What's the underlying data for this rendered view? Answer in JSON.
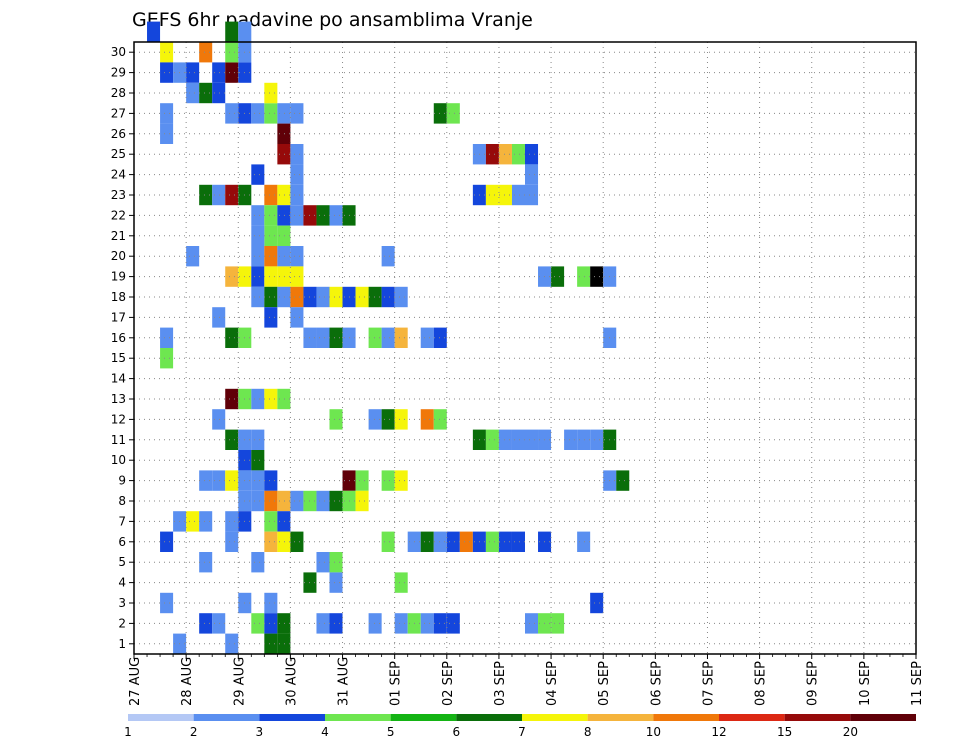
{
  "chart_data": {
    "type": "heatmap",
    "title": "GEFS 6hr padavine po ansamblima Vranje",
    "x_tick_labels": [
      "27 AUG",
      "28 AUG",
      "29 AUG",
      "30 AUG",
      "31 AUG",
      "01 SEP",
      "02 SEP",
      "03 SEP",
      "04 SEP",
      "05 SEP",
      "06 SEP",
      "07 SEP",
      "08 SEP",
      "09 SEP",
      "10 SEP",
      "11 SEP"
    ],
    "y_tick_labels": [
      "1",
      "2",
      "3",
      "4",
      "5",
      "6",
      "7",
      "8",
      "9",
      "10",
      "11",
      "12",
      "13",
      "14",
      "15",
      "16",
      "17",
      "18",
      "19",
      "20",
      "21",
      "22",
      "23",
      "24",
      "25",
      "26",
      "27",
      "28",
      "29",
      "30"
    ],
    "ylim": [
      0,
      30
    ],
    "steps_per_day": 4,
    "grid": true,
    "legend": {
      "placement": "bottom",
      "labels": [
        "1",
        "2",
        "3",
        "4",
        "5",
        "6",
        "7",
        "8",
        "10",
        "12",
        "15",
        "20"
      ],
      "colors": [
        "#b4c8f5",
        "#5a8ff0",
        "#1446dc",
        "#6ee650",
        "#14b414",
        "#0a6e0a",
        "#f5f50a",
        "#f5b43c",
        "#f0780a",
        "#dc2814",
        "#960a0a",
        "#600008"
      ]
    },
    "cells": [
      [
        1,
        30,
        2
      ],
      [
        2,
        29,
        6
      ],
      [
        2,
        28,
        2
      ],
      [
        3,
        28,
        1
      ],
      [
        4,
        28,
        2
      ],
      [
        4,
        27,
        1
      ],
      [
        2,
        26,
        1
      ],
      [
        2,
        25,
        1
      ],
      [
        5,
        29,
        8
      ],
      [
        6,
        28,
        2
      ],
      [
        7,
        28,
        11
      ],
      [
        8,
        28,
        2
      ],
      [
        7,
        30,
        5
      ],
      [
        8,
        30,
        1
      ],
      [
        7,
        29,
        3
      ],
      [
        8,
        29,
        1
      ],
      [
        5,
        27,
        5
      ],
      [
        6,
        27,
        2
      ],
      [
        7,
        26,
        1
      ],
      [
        8,
        26,
        2
      ],
      [
        9,
        26,
        1
      ],
      [
        10,
        26,
        3
      ],
      [
        11,
        26,
        1
      ],
      [
        12,
        26,
        1
      ],
      [
        10,
        27,
        6
      ],
      [
        11,
        25,
        11
      ],
      [
        11,
        24,
        10
      ],
      [
        12,
        24,
        1
      ],
      [
        9,
        23,
        2
      ],
      [
        12,
        23,
        1
      ],
      [
        5,
        22,
        5
      ],
      [
        6,
        22,
        1
      ],
      [
        7,
        22,
        10
      ],
      [
        8,
        22,
        5
      ],
      [
        10,
        22,
        8
      ],
      [
        11,
        22,
        6
      ],
      [
        12,
        22,
        1
      ],
      [
        9,
        21,
        1
      ],
      [
        10,
        21,
        3
      ],
      [
        11,
        21,
        2
      ],
      [
        12,
        21,
        1
      ],
      [
        13,
        21,
        10
      ],
      [
        14,
        21,
        5
      ],
      [
        15,
        21,
        1
      ],
      [
        16,
        21,
        5
      ],
      [
        10,
        20,
        3
      ],
      [
        11,
        20,
        3
      ],
      [
        9,
        20,
        1
      ],
      [
        4,
        19,
        1
      ],
      [
        9,
        19,
        1
      ],
      [
        10,
        19,
        8
      ],
      [
        11,
        19,
        1
      ],
      [
        12,
        19,
        1
      ],
      [
        19,
        19,
        1
      ],
      [
        7,
        18,
        7
      ],
      [
        8,
        18,
        6
      ],
      [
        9,
        18,
        2
      ],
      [
        10,
        18,
        6
      ],
      [
        11,
        18,
        6
      ],
      [
        12,
        18,
        6
      ],
      [
        9,
        17,
        1
      ],
      [
        10,
        17,
        5
      ],
      [
        11,
        17,
        1
      ],
      [
        12,
        17,
        8
      ],
      [
        13,
        17,
        2
      ],
      [
        14,
        17,
        1
      ],
      [
        15,
        17,
        6
      ],
      [
        16,
        17,
        2
      ],
      [
        17,
        17,
        6
      ],
      [
        18,
        17,
        5
      ],
      [
        19,
        17,
        2
      ],
      [
        20,
        17,
        1
      ],
      [
        6,
        16,
        1
      ],
      [
        10,
        16,
        2
      ],
      [
        12,
        16,
        1
      ],
      [
        2,
        15,
        1
      ],
      [
        7,
        15,
        5
      ],
      [
        8,
        15,
        3
      ],
      [
        13,
        15,
        1
      ],
      [
        14,
        15,
        1
      ],
      [
        15,
        15,
        5
      ],
      [
        16,
        15,
        1
      ],
      [
        18,
        15,
        3
      ],
      [
        19,
        15,
        1
      ],
      [
        20,
        15,
        7
      ],
      [
        22,
        15,
        1
      ],
      [
        23,
        15,
        2
      ],
      [
        36,
        15,
        1
      ],
      [
        2,
        14,
        3
      ],
      [
        7,
        12,
        11
      ],
      [
        8,
        12,
        3
      ],
      [
        9,
        12,
        1
      ],
      [
        10,
        12,
        6
      ],
      [
        11,
        12,
        3
      ],
      [
        6,
        11,
        1
      ],
      [
        15,
        11,
        3
      ],
      [
        18,
        11,
        1
      ],
      [
        19,
        11,
        5
      ],
      [
        20,
        11,
        6
      ],
      [
        22,
        11,
        8
      ],
      [
        23,
        11,
        3
      ],
      [
        7,
        10,
        5
      ],
      [
        8,
        10,
        1
      ],
      [
        9,
        10,
        1
      ],
      [
        26,
        10,
        5
      ],
      [
        27,
        10,
        3
      ],
      [
        28,
        10,
        1
      ],
      [
        29,
        10,
        1
      ],
      [
        30,
        10,
        1
      ],
      [
        31,
        10,
        1
      ],
      [
        33,
        10,
        1
      ],
      [
        34,
        10,
        1
      ],
      [
        35,
        10,
        1
      ],
      [
        36,
        10,
        5
      ],
      [
        8,
        9,
        2
      ],
      [
        9,
        9,
        5
      ],
      [
        5,
        8,
        1
      ],
      [
        6,
        8,
        1
      ],
      [
        7,
        8,
        6
      ],
      [
        8,
        8,
        1
      ],
      [
        9,
        8,
        1
      ],
      [
        10,
        8,
        2
      ],
      [
        16,
        8,
        11
      ],
      [
        17,
        8,
        3
      ],
      [
        19,
        8,
        3
      ],
      [
        20,
        8,
        6
      ],
      [
        36,
        8,
        1
      ],
      [
        37,
        8,
        5
      ],
      [
        8,
        7,
        1
      ],
      [
        9,
        7,
        1
      ],
      [
        10,
        7,
        8
      ],
      [
        11,
        7,
        7
      ],
      [
        12,
        7,
        1
      ],
      [
        13,
        7,
        3
      ],
      [
        14,
        7,
        1
      ],
      [
        15,
        7,
        5
      ],
      [
        16,
        7,
        3
      ],
      [
        17,
        7,
        6
      ],
      [
        3,
        6,
        1
      ],
      [
        4,
        6,
        6
      ],
      [
        5,
        6,
        1
      ],
      [
        7,
        6,
        1
      ],
      [
        8,
        6,
        2
      ],
      [
        10,
        6,
        3
      ],
      [
        11,
        6,
        2
      ],
      [
        2,
        5,
        2
      ],
      [
        7,
        5,
        1
      ],
      [
        10,
        5,
        7
      ],
      [
        11,
        5,
        6
      ],
      [
        12,
        5,
        5
      ],
      [
        19,
        5,
        3
      ],
      [
        21,
        5,
        1
      ],
      [
        22,
        5,
        5
      ],
      [
        23,
        5,
        1
      ],
      [
        24,
        5,
        2
      ],
      [
        25,
        5,
        8
      ],
      [
        26,
        5,
        2
      ],
      [
        27,
        5,
        3
      ],
      [
        28,
        5,
        2
      ],
      [
        29,
        5,
        2
      ],
      [
        31,
        5,
        2
      ],
      [
        34,
        5,
        1
      ],
      [
        5,
        4,
        1
      ],
      [
        9,
        4,
        1
      ],
      [
        14,
        4,
        1
      ],
      [
        15,
        4,
        3
      ],
      [
        13,
        3,
        5
      ],
      [
        15,
        3,
        1
      ],
      [
        20,
        3,
        3
      ],
      [
        2,
        2,
        1
      ],
      [
        8,
        2,
        1
      ],
      [
        10,
        2,
        1
      ],
      [
        35,
        2,
        2
      ],
      [
        5,
        1,
        2
      ],
      [
        6,
        1,
        1
      ],
      [
        9,
        1,
        3
      ],
      [
        10,
        1,
        2
      ],
      [
        11,
        1,
        5
      ],
      [
        14,
        1,
        1
      ],
      [
        15,
        1,
        2
      ],
      [
        18,
        1,
        1
      ],
      [
        20,
        1,
        1
      ],
      [
        21,
        1,
        3
      ],
      [
        22,
        1,
        1
      ],
      [
        23,
        1,
        2
      ],
      [
        24,
        1,
        2
      ],
      [
        30,
        1,
        1
      ],
      [
        31,
        1,
        3
      ],
      [
        32,
        1,
        3
      ],
      [
        3,
        0,
        1
      ],
      [
        7,
        0,
        1
      ],
      [
        10,
        0,
        5
      ],
      [
        11,
        0,
        5
      ],
      [
        26,
        24,
        1
      ],
      [
        27,
        24,
        10
      ],
      [
        28,
        24,
        7
      ],
      [
        29,
        24,
        3
      ],
      [
        30,
        24,
        2
      ],
      [
        26,
        22,
        2
      ],
      [
        27,
        22,
        6
      ],
      [
        28,
        22,
        6
      ],
      [
        29,
        22,
        1
      ],
      [
        30,
        22,
        1
      ],
      [
        30,
        23,
        1
      ],
      [
        23,
        26,
        5
      ],
      [
        24,
        26,
        3
      ],
      [
        31,
        18,
        1
      ],
      [
        32,
        18,
        5
      ],
      [
        34,
        18,
        3
      ],
      [
        35,
        18,
        12
      ],
      [
        36,
        18,
        1
      ]
    ]
  }
}
